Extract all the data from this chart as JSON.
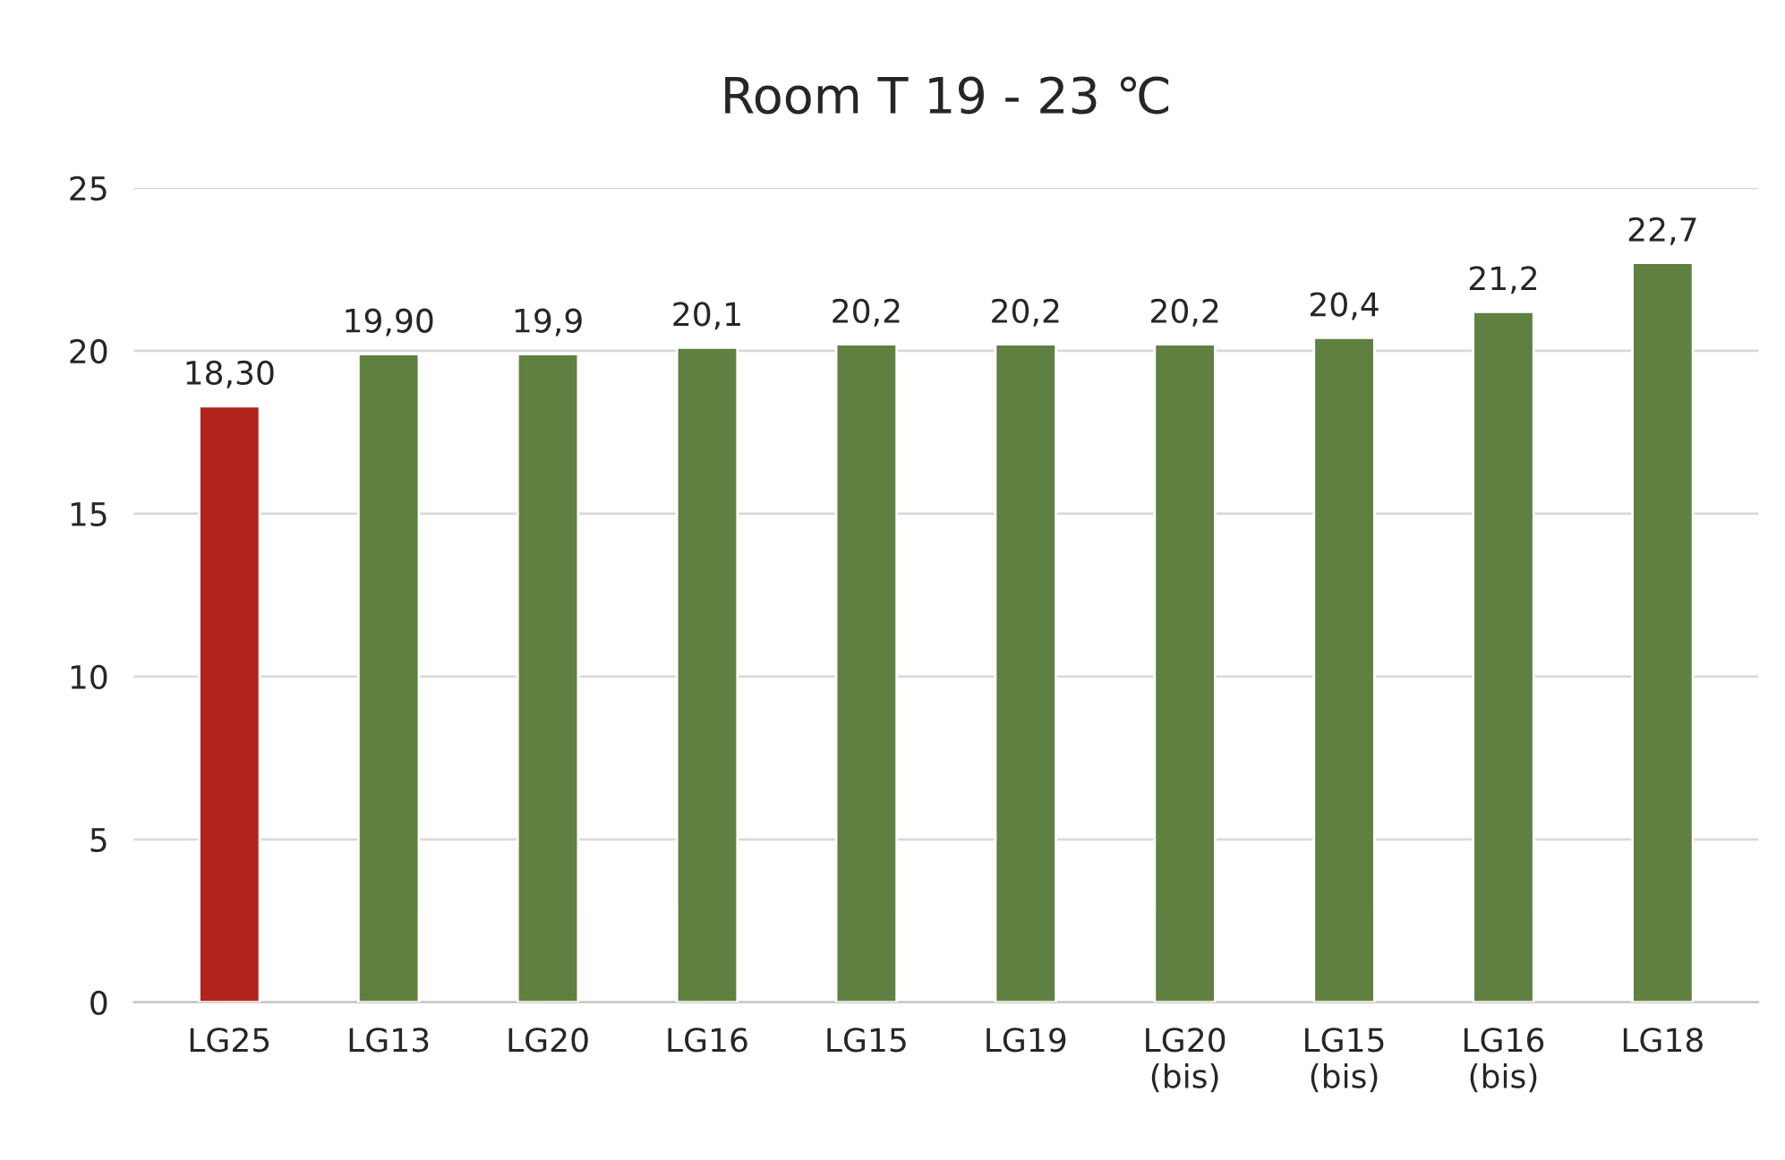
{
  "chart_data": {
    "type": "bar",
    "title": "Room T 19 - 23 ℃",
    "categories": [
      "LG25",
      "LG13",
      "LG20",
      "LG16",
      "LG15",
      "LG19",
      "LG20\n(bis)",
      "LG15\n(bis)",
      "LG16\n(bis)",
      "LG18"
    ],
    "values": [
      18.3,
      19.9,
      19.9,
      20.1,
      20.2,
      20.2,
      20.2,
      20.4,
      21.2,
      22.7
    ],
    "value_labels": [
      "18,30",
      "19,90",
      "19,9",
      "20,1",
      "20,2",
      "20,2",
      "20,2",
      "20,4",
      "21,2",
      "22,7"
    ],
    "colors": [
      "#b0241b",
      "#5f8040",
      "#5f8040",
      "#5f8040",
      "#5f8040",
      "#5f8040",
      "#5f8040",
      "#5f8040",
      "#5f8040",
      "#5f8040"
    ],
    "ylim": [
      0,
      25
    ],
    "yticks": [
      0,
      5,
      10,
      15,
      20,
      25
    ],
    "grid": "y"
  }
}
